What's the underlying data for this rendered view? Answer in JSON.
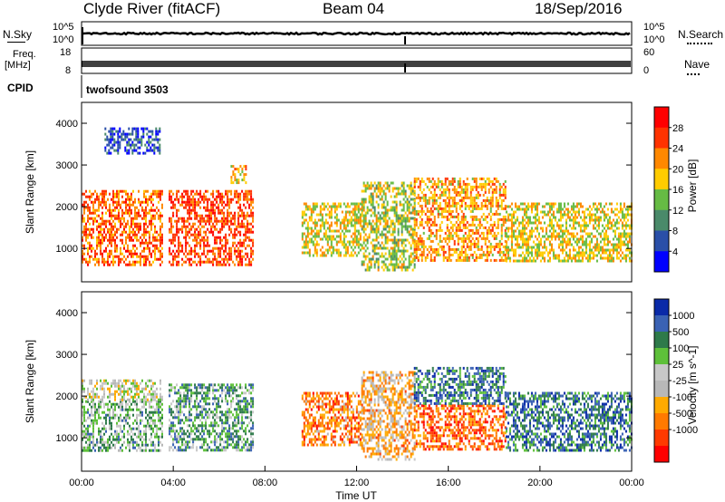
{
  "header": {
    "title": "Clyde River (fitACF)",
    "beam": "Beam 04",
    "date": "18/Sep/2016"
  },
  "ancillary": {
    "nsky_label": "N.Sky",
    "nsky_top": "10^5",
    "nsky_bottom": "10^0",
    "nsearch_label": "N.Search",
    "nsearch_top": "10^5",
    "nsearch_bottom": "10^0",
    "freq_label": "Freq.",
    "freq_unit": "[MHz]",
    "freq_top": "18",
    "freq_bottom": "8",
    "nave_label": "Nave",
    "nave_top": "60",
    "nave_bottom": "0",
    "cpid_label": "CPID",
    "cpid_value": "twofsound 3503"
  },
  "colors": {
    "power_scale": [
      "#0000ff",
      "#2a4fa8",
      "#4a8a6a",
      "#66bb44",
      "#ffcc00",
      "#ff8800",
      "#ff3300",
      "#ff0000"
    ],
    "velocity_scale": [
      "#0a2aa8",
      "#3a62b4",
      "#2e7a4a",
      "#5ec03a",
      "#c8c8c8",
      "#b8b8b8",
      "#ffaa00",
      "#ff7a00",
      "#ff3a00",
      "#ff0000"
    ]
  },
  "chart_data": [
    {
      "type": "heatmap",
      "name": "Power",
      "ylabel": "Slant Range [km]",
      "yticks": [
        1000,
        2000,
        3000,
        4000
      ],
      "ylim": [
        200,
        4500
      ],
      "xlim": [
        0,
        24
      ],
      "colorbar_label": "Power [dB]",
      "colorbar_ticks": [
        "4",
        "8",
        "12",
        "16",
        "20",
        "24",
        "28"
      ],
      "blobs": [
        {
          "t0": 0.0,
          "t1": 3.5,
          "r0": 600,
          "r1": 2400,
          "level": 0.75
        },
        {
          "t0": 1.0,
          "t1": 3.4,
          "r0": 3300,
          "r1": 3900,
          "level": 0.15
        },
        {
          "t0": 3.8,
          "t1": 7.5,
          "r0": 600,
          "r1": 2400,
          "level": 0.8
        },
        {
          "t0": 6.5,
          "t1": 7.2,
          "r0": 2600,
          "r1": 3000,
          "level": 0.6
        },
        {
          "t0": 9.6,
          "t1": 12.2,
          "r0": 800,
          "r1": 2100,
          "level": 0.55
        },
        {
          "t0": 12.2,
          "t1": 14.5,
          "r0": 500,
          "r1": 2600,
          "level": 0.5
        },
        {
          "t0": 14.5,
          "t1": 18.5,
          "r0": 700,
          "r1": 2700,
          "level": 0.65
        },
        {
          "t0": 18.5,
          "t1": 24.0,
          "r0": 700,
          "r1": 2100,
          "level": 0.55
        }
      ]
    },
    {
      "type": "heatmap",
      "name": "Velocity",
      "ylabel": "Slant Range [km]",
      "yticks": [
        1000,
        2000,
        3000,
        4000
      ],
      "ylim": [
        200,
        4500
      ],
      "xlim": [
        0,
        24
      ],
      "xlabel": "Time UT",
      "xticks": [
        "00:00",
        "04:00",
        "08:00",
        "12:00",
        "16:00",
        "20:00",
        "00:00"
      ],
      "colorbar_label": "Velocity [m s^-1]",
      "colorbar_ticks": [
        "1000",
        "500",
        "100",
        "25",
        "-25",
        "-100",
        "-500",
        "-1000"
      ],
      "blobs": [
        {
          "t0": 0.0,
          "t1": 3.5,
          "r0": 700,
          "r1": 1900,
          "level": 0.35
        },
        {
          "t0": 0.0,
          "t1": 3.5,
          "r0": 1900,
          "r1": 2400,
          "level": 0.5
        },
        {
          "t0": 3.8,
          "t1": 7.5,
          "r0": 700,
          "r1": 2300,
          "level": 0.3
        },
        {
          "t0": 9.6,
          "t1": 12.2,
          "r0": 800,
          "r1": 2100,
          "level": 0.75
        },
        {
          "t0": 12.2,
          "t1": 14.5,
          "r0": 500,
          "r1": 2600,
          "level": 0.65
        },
        {
          "t0": 14.5,
          "t1": 18.5,
          "r0": 700,
          "r1": 1800,
          "level": 0.8
        },
        {
          "t0": 14.5,
          "t1": 18.5,
          "r0": 1800,
          "r1": 2700,
          "level": 0.2
        },
        {
          "t0": 18.5,
          "t1": 24.0,
          "r0": 700,
          "r1": 2100,
          "level": 0.2
        }
      ]
    }
  ]
}
